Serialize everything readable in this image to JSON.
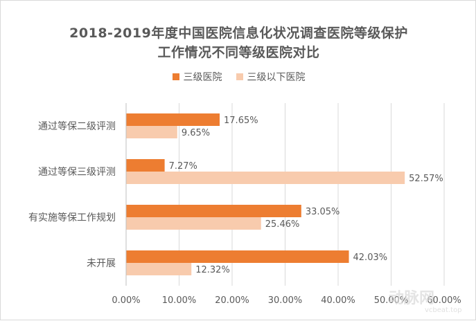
{
  "chart_data": {
    "type": "bar",
    "orientation": "horizontal",
    "title": "2018-2019年度中国医院信息化状况调查医院等级保护",
    "title_line2": "工作情况不同等级医院对比",
    "categories": [
      "通过等保二级评测",
      "通过等保三级评测",
      "有实施等保工作规划",
      "未开展"
    ],
    "series": [
      {
        "name": "三级医院",
        "values": [
          17.65,
          7.27,
          33.05,
          42.03
        ],
        "labels": [
          "17.65%",
          "7.27%",
          "33.05%",
          "42.03%"
        ],
        "color": "#ed7d31"
      },
      {
        "name": "三级以下医院",
        "values": [
          9.65,
          52.57,
          25.46,
          12.32
        ],
        "labels": [
          "9.65%",
          "52.57%",
          "25.46%",
          "12.32%"
        ],
        "color": "#f8cbad"
      }
    ],
    "xlim": [
      0,
      60
    ],
    "xticks": [
      0,
      10,
      20,
      30,
      40,
      50,
      60
    ],
    "xtick_labels": [
      "0.00%",
      "10.00%",
      "20.00%",
      "30.00%",
      "40.00%",
      "50.00%",
      "60.00%"
    ],
    "grid": true,
    "legend_position": "top"
  },
  "watermark": {
    "brand": "动脉网",
    "url": "vcbeat.top"
  },
  "colors": {
    "text": "#595959",
    "grid": "#d9d9d9"
  }
}
